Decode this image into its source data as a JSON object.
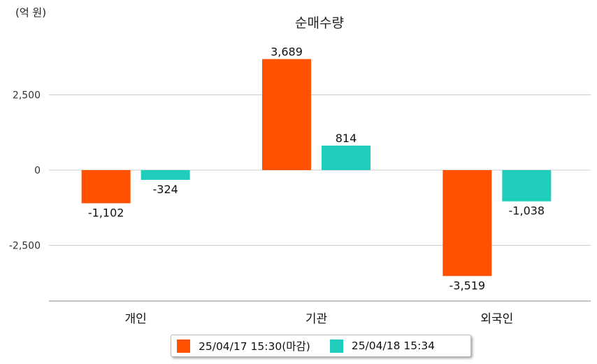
{
  "colors": {
    "series1": "#ff5100",
    "series2": "#1ecdbc",
    "grid": "#cccccc",
    "axis": "#888888"
  },
  "chart_data": {
    "type": "bar",
    "title": "순매수량",
    "unit_label": "(억 원)",
    "categories": [
      "개인",
      "기관",
      "외국인"
    ],
    "series": [
      {
        "name": "25/04/17 15:30(마감)",
        "values": [
          -1102,
          3689,
          -3519
        ],
        "labels": [
          "-1,102",
          "3,689",
          "-3,519"
        ]
      },
      {
        "name": "25/04/18 15:34",
        "values": [
          -324,
          814,
          -1038
        ],
        "labels": [
          "-324",
          "814",
          "-1,038"
        ]
      }
    ],
    "yticks": [
      2500,
      0,
      -2500
    ],
    "ytick_labels": [
      "2,500",
      "0",
      "-2,500"
    ],
    "ylim": [
      -4400,
      4400
    ],
    "grid": true,
    "legend_position": "bottom"
  }
}
